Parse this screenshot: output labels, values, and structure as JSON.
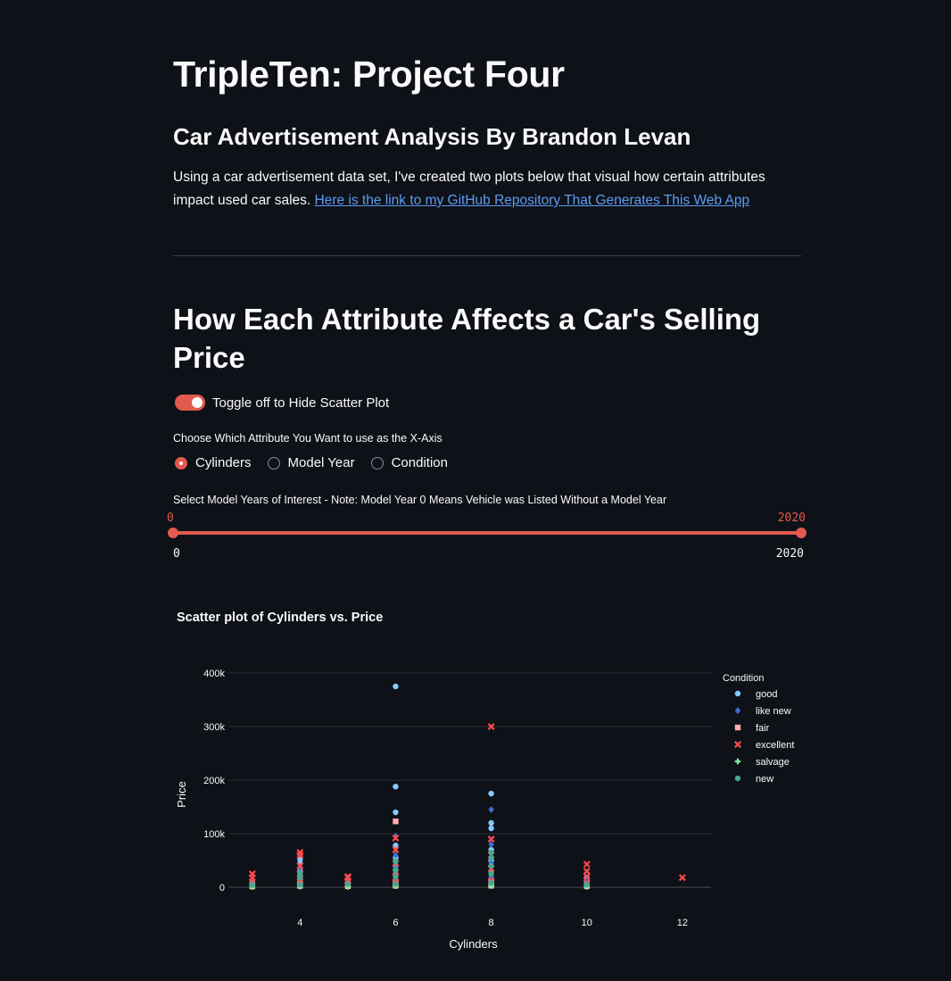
{
  "header": {
    "title": "TripleTen: Project Four",
    "subtitle": "Car Advertisement Analysis By Brandon Levan",
    "intro_text": "Using a car advertisement data set, I've created two plots below that visual how certain attributes impact used car sales.",
    "repo_link_text": "Here is the link to my GitHub Repository That Generates This Web App"
  },
  "section": {
    "heading": "How Each Attribute Affects a Car's Selling Price"
  },
  "controls": {
    "toggle": {
      "label": "Toggle off to Hide Scatter Plot",
      "checked": true
    },
    "radio": {
      "caption": "Choose Which Attribute You Want to use as the X-Axis",
      "options": [
        "Cylinders",
        "Model Year",
        "Condition"
      ],
      "selected": "Cylinders"
    },
    "slider": {
      "caption": "Select Model Years of Interest - Note: Model Year 0 Means Vehicle was Listed Without a Model Year",
      "value_low": "0",
      "value_high": "2020",
      "min_label": "0",
      "max_label": "2020"
    }
  },
  "colors": {
    "accent": "#e25a4f",
    "background": "#0e1117",
    "link": "#5b9cf5"
  },
  "chart_data": {
    "type": "scatter",
    "title": "Scatter plot of Cylinders vs. Price",
    "xlabel": "Cylinders",
    "ylabel": "Price",
    "xlim": [
      2.5,
      12.6
    ],
    "ylim": [
      -10000,
      410000
    ],
    "x_ticks": [
      4,
      6,
      8,
      10,
      12
    ],
    "y_ticks": [
      0,
      100000,
      200000,
      300000,
      400000
    ],
    "y_tick_labels": [
      "0",
      "100k",
      "200k",
      "300k",
      "400k"
    ],
    "legend_title": "Condition",
    "legend_position": "right",
    "series": [
      {
        "name": "good",
        "color": "#83c9ff",
        "symbol": "circle",
        "points": [
          [
            3,
            2000
          ],
          [
            3,
            6000
          ],
          [
            3,
            9000
          ],
          [
            4,
            3000
          ],
          [
            4,
            8000
          ],
          [
            4,
            15000
          ],
          [
            4,
            22000
          ],
          [
            4,
            30000
          ],
          [
            4,
            45000
          ],
          [
            4,
            52000
          ],
          [
            5,
            3000
          ],
          [
            5,
            8000
          ],
          [
            5,
            14000
          ],
          [
            6,
            4000
          ],
          [
            6,
            12000
          ],
          [
            6,
            25000
          ],
          [
            6,
            40000
          ],
          [
            6,
            55000
          ],
          [
            6,
            78000
          ],
          [
            6,
            140000
          ],
          [
            6,
            188000
          ],
          [
            6,
            375000
          ],
          [
            8,
            5000
          ],
          [
            8,
            15000
          ],
          [
            8,
            30000
          ],
          [
            8,
            50000
          ],
          [
            8,
            70000
          ],
          [
            8,
            110000
          ],
          [
            8,
            120000
          ],
          [
            8,
            175000
          ],
          [
            10,
            3000
          ],
          [
            10,
            10000
          ],
          [
            10,
            18000
          ]
        ]
      },
      {
        "name": "like new",
        "color": "#3b6fd4",
        "symbol": "diamond",
        "points": [
          [
            3,
            5000
          ],
          [
            4,
            12000
          ],
          [
            4,
            28000
          ],
          [
            4,
            38000
          ],
          [
            5,
            10000
          ],
          [
            6,
            18000
          ],
          [
            6,
            35000
          ],
          [
            6,
            60000
          ],
          [
            6,
            95000
          ],
          [
            8,
            20000
          ],
          [
            8,
            45000
          ],
          [
            8,
            80000
          ],
          [
            8,
            145000
          ],
          [
            10,
            15000
          ]
        ]
      },
      {
        "name": "fair",
        "color": "#ffabab",
        "symbol": "square",
        "points": [
          [
            3,
            1500
          ],
          [
            4,
            2500
          ],
          [
            4,
            6000
          ],
          [
            5,
            2000
          ],
          [
            6,
            3000
          ],
          [
            6,
            8000
          ],
          [
            6,
            123000
          ],
          [
            8,
            3000
          ],
          [
            8,
            10000
          ],
          [
            10,
            2000
          ]
        ]
      },
      {
        "name": "excellent",
        "color": "#ff4b4b",
        "symbol": "x",
        "points": [
          [
            3,
            10000
          ],
          [
            3,
            18000
          ],
          [
            3,
            25000
          ],
          [
            4,
            10000
          ],
          [
            4,
            25000
          ],
          [
            4,
            40000
          ],
          [
            4,
            60000
          ],
          [
            4,
            65000
          ],
          [
            5,
            5000
          ],
          [
            5,
            12000
          ],
          [
            5,
            18000
          ],
          [
            5,
            20000
          ],
          [
            6,
            10000
          ],
          [
            6,
            28000
          ],
          [
            6,
            45000
          ],
          [
            6,
            70000
          ],
          [
            6,
            92000
          ],
          [
            8,
            12000
          ],
          [
            8,
            35000
          ],
          [
            8,
            60000
          ],
          [
            8,
            90000
          ],
          [
            8,
            300000
          ],
          [
            10,
            8000
          ],
          [
            10,
            20000
          ],
          [
            10,
            30000
          ],
          [
            10,
            43000
          ],
          [
            12,
            18000
          ]
        ]
      },
      {
        "name": "salvage",
        "color": "#7defa1",
        "symbol": "cross",
        "points": [
          [
            3,
            1000
          ],
          [
            4,
            1500
          ],
          [
            5,
            1000
          ],
          [
            6,
            2000
          ],
          [
            8,
            2500
          ],
          [
            8,
            6000
          ],
          [
            10,
            1000
          ]
        ]
      },
      {
        "name": "new",
        "color": "#45a88f",
        "symbol": "circle",
        "points": [
          [
            3,
            4000
          ],
          [
            4,
            5000
          ],
          [
            4,
            18000
          ],
          [
            4,
            26000
          ],
          [
            5,
            6000
          ],
          [
            6,
            6000
          ],
          [
            6,
            20000
          ],
          [
            6,
            32000
          ],
          [
            6,
            48000
          ],
          [
            8,
            8000
          ],
          [
            8,
            25000
          ],
          [
            8,
            40000
          ],
          [
            8,
            55000
          ],
          [
            8,
            65000
          ],
          [
            10,
            5000
          ]
        ]
      }
    ]
  }
}
